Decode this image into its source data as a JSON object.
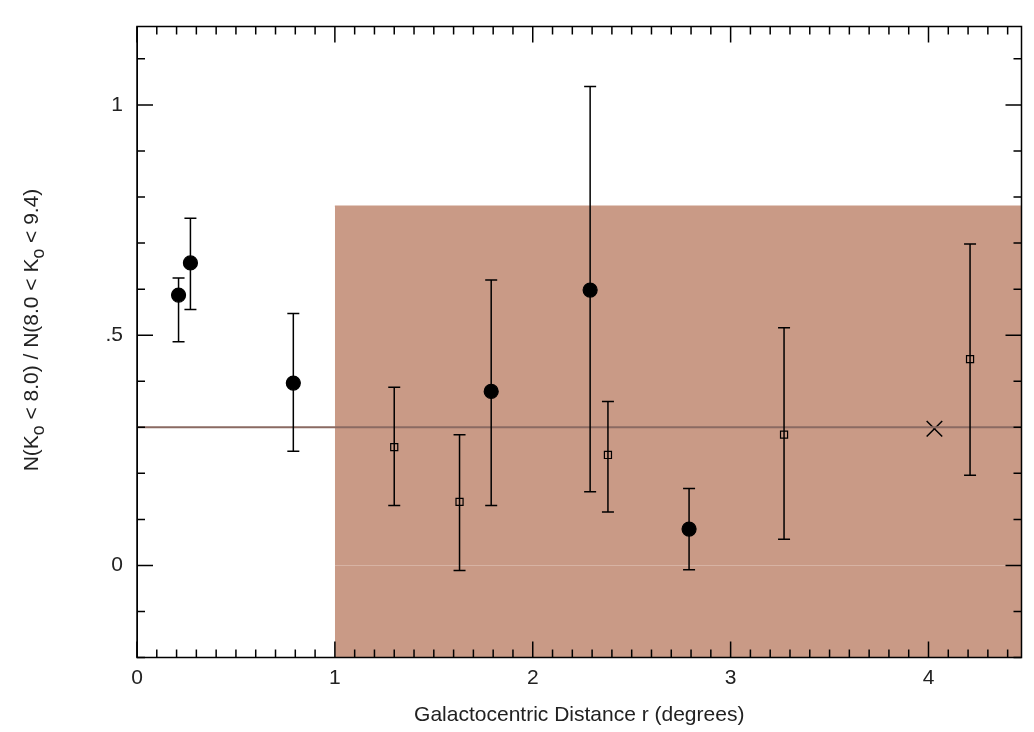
{
  "chart_data": {
    "type": "scatter",
    "xlabel": "Galactocentric Distance r (degrees)",
    "ylabel": "N(K$_{o}$ < 8.0) / N(8.0 < K$_{o}$ < 9.4)",
    "xlim": [
      0,
      4.47
    ],
    "ylim": [
      -0.2,
      1.17
    ],
    "xticks": [
      0,
      {
        "value": 0.1,
        "label": null
      },
      {
        "value": 0.2,
        "label": null
      },
      {
        "value": 0.3,
        "label": null
      },
      {
        "value": 0.4,
        "label": null
      },
      {
        "value": 0.5,
        "label": null
      },
      {
        "value": 0.6,
        "label": null
      },
      {
        "value": 0.7,
        "label": null
      },
      {
        "value": 0.8,
        "label": null
      },
      {
        "value": 0.9,
        "label": null
      },
      1,
      {
        "value": 1.1,
        "label": null
      },
      {
        "value": 1.2,
        "label": null
      },
      {
        "value": 1.3,
        "label": null
      },
      {
        "value": 1.4,
        "label": null
      },
      {
        "value": 1.5,
        "label": null
      },
      {
        "value": 1.6,
        "label": null
      },
      {
        "value": 1.7,
        "label": null
      },
      {
        "value": 1.8,
        "label": null
      },
      {
        "value": 1.9,
        "label": null
      },
      2,
      {
        "value": 2.1,
        "label": null
      },
      {
        "value": 2.2,
        "label": null
      },
      {
        "value": 2.3,
        "label": null
      },
      {
        "value": 2.4,
        "label": null
      },
      {
        "value": 2.5,
        "label": null
      },
      {
        "value": 2.6,
        "label": null
      },
      {
        "value": 2.7,
        "label": null
      },
      {
        "value": 2.8,
        "label": null
      },
      {
        "value": 2.9,
        "label": null
      },
      3,
      {
        "value": 3.1,
        "label": null
      },
      {
        "value": 3.2,
        "label": null
      },
      {
        "value": 3.3,
        "label": null
      },
      {
        "value": 3.4,
        "label": null
      },
      {
        "value": 3.5,
        "label": null
      },
      {
        "value": 3.6,
        "label": null
      },
      {
        "value": 3.7,
        "label": null
      },
      {
        "value": 3.8,
        "label": null
      },
      {
        "value": 3.9,
        "label": null
      },
      4,
      {
        "value": 4.1,
        "label": null
      },
      {
        "value": 4.2,
        "label": null
      },
      {
        "value": 4.3,
        "label": null
      },
      {
        "value": 4.4,
        "label": null
      }
    ],
    "yticks": [
      {
        "value": -0.2,
        "label": null
      },
      {
        "value": -0.1,
        "label": null
      },
      0,
      {
        "value": 0.1,
        "label": null
      },
      {
        "value": 0.2,
        "label": null
      },
      {
        "value": 0.3,
        "label": null
      },
      {
        "value": 0.4,
        "label": null
      },
      {
        "value": 0.5,
        "label": ".5"
      },
      {
        "value": 0.6,
        "label": null
      },
      {
        "value": 0.7,
        "label": null
      },
      {
        "value": 0.8,
        "label": null
      },
      {
        "value": 0.9,
        "label": null
      },
      1,
      {
        "value": 1.1,
        "label": null
      }
    ],
    "grid": false,
    "legend": false,
    "ref_lines": [
      {
        "axis": "y",
        "value": 0.3,
        "color": "#8a6a62"
      }
    ],
    "series": [
      {
        "type": "area",
        "color": "#c99a86",
        "x": [
          1.0,
          4.47
        ],
        "values": [
          0.78,
          0.78
        ]
      },
      {
        "type": "area",
        "color": "#c99a86",
        "x": [
          1.0,
          4.47
        ],
        "values": [
          -0.2,
          -0.2
        ]
      },
      {
        "marker": "circle",
        "color": "#000000",
        "x": [
          0.21,
          0.27,
          0.79,
          1.79,
          2.29,
          2.79
        ],
        "values": [
          0.587,
          0.657,
          0.396,
          0.378,
          0.598,
          0.079
        ],
        "errors": [
          [
            0.486,
            0.624
          ],
          [
            0.556,
            0.754
          ],
          [
            0.248,
            0.547
          ],
          [
            0.13,
            0.62
          ],
          [
            0.16,
            1.04
          ],
          [
            -0.009,
            0.167
          ]
        ]
      },
      {
        "marker": "square",
        "color": "#000000",
        "x": [
          1.3,
          1.63,
          2.38,
          3.27,
          4.21
        ],
        "values": [
          0.257,
          0.138,
          0.24,
          0.284,
          0.448
        ],
        "errors": [
          [
            0.13,
            0.387
          ],
          [
            -0.011,
            0.284
          ],
          [
            0.116,
            0.356
          ],
          [
            0.057,
            0.516
          ],
          [
            0.196,
            0.698
          ]
        ]
      },
      {
        "marker": "cross",
        "color": "#000000",
        "x": [
          4.03
        ],
        "values": [
          0.297
        ]
      }
    ]
  }
}
